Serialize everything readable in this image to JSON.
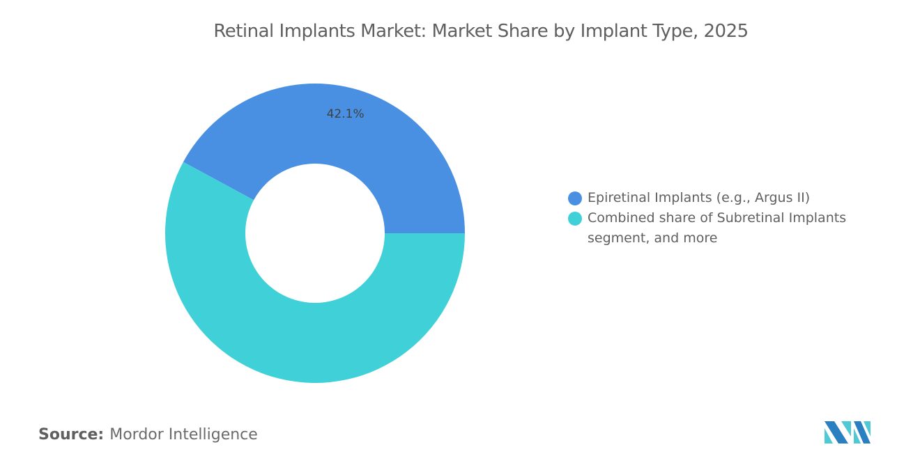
{
  "chart_data": {
    "type": "pie",
    "variant": "donut",
    "title": "Retinal Implants Market: Market Share by Implant Type, 2025",
    "slices": [
      {
        "label": "Epiretinal Implants (e.g., Argus II)",
        "value": 42.1,
        "data_label": "42.1%",
        "color": "#4a90e2"
      },
      {
        "label": "Combined share of Subretinal Implants segment, and more",
        "value": 57.9,
        "data_label": "",
        "color": "#40d0d8"
      }
    ],
    "legend_position": "right"
  },
  "source": {
    "label": "Source:",
    "value": "Mordor Intelligence"
  },
  "logo": {
    "text": "Mordor Intelligence",
    "colors": [
      "#2a7fc1",
      "#4fc9d3"
    ]
  }
}
